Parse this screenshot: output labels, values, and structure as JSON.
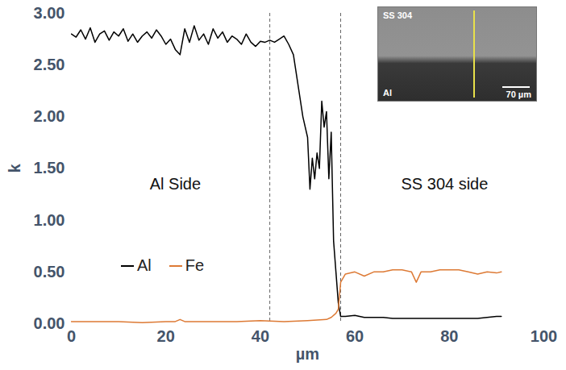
{
  "chart_data": {
    "type": "line",
    "x_label": "µm",
    "y_label": "k",
    "xlim": [
      0,
      100
    ],
    "xticks": [
      0,
      20,
      40,
      60,
      80,
      100
    ],
    "ylim": [
      0,
      3
    ],
    "yticks": [
      {
        "value": 0,
        "label": "0.00"
      },
      {
        "value": 0.5,
        "label": "0.50"
      },
      {
        "value": 1,
        "label": "1.00"
      },
      {
        "value": 1.5,
        "label": "1.50"
      },
      {
        "value": 2,
        "label": "2.00"
      },
      {
        "value": 2.5,
        "label": "2.50"
      },
      {
        "value": 3,
        "label": "3.00"
      }
    ],
    "grid": false,
    "legend": "left",
    "series": [
      {
        "name": "Al",
        "color": "#000000",
        "x": [
          0,
          1,
          2,
          3,
          4,
          5,
          6,
          7,
          8,
          9,
          10,
          11,
          12,
          13,
          14,
          15,
          16,
          17,
          18,
          19,
          20,
          21,
          22,
          23,
          24,
          25,
          26,
          27,
          28,
          29,
          30,
          31,
          32,
          33,
          34,
          35,
          36,
          37,
          38,
          39,
          40,
          41,
          42,
          43,
          44,
          45,
          46,
          47,
          48,
          49,
          50,
          50.5,
          51,
          51.5,
          52,
          52.5,
          53,
          53.5,
          54,
          54.5,
          55,
          55.5,
          56,
          56.5,
          57,
          58,
          60,
          62,
          64,
          66,
          68,
          70,
          72,
          74,
          76,
          78,
          80,
          82,
          84,
          86,
          88,
          90,
          91
        ],
        "values": [
          2.8,
          2.77,
          2.84,
          2.75,
          2.86,
          2.72,
          2.8,
          2.83,
          2.74,
          2.82,
          2.78,
          2.85,
          2.73,
          2.8,
          2.72,
          2.78,
          2.82,
          2.76,
          2.84,
          2.78,
          2.7,
          2.75,
          2.65,
          2.6,
          2.85,
          2.72,
          2.88,
          2.74,
          2.8,
          2.7,
          2.85,
          2.76,
          2.82,
          2.72,
          2.78,
          2.75,
          2.7,
          2.8,
          2.72,
          2.68,
          2.73,
          2.72,
          2.74,
          2.72,
          2.75,
          2.78,
          2.7,
          2.6,
          2.3,
          2.0,
          1.8,
          1.3,
          1.6,
          1.4,
          1.65,
          1.5,
          2.15,
          1.9,
          2.05,
          1.4,
          1.85,
          0.8,
          0.5,
          0.2,
          0.07,
          0.07,
          0.08,
          0.06,
          0.06,
          0.06,
          0.05,
          0.05,
          0.05,
          0.05,
          0.05,
          0.05,
          0.05,
          0.05,
          0.05,
          0.05,
          0.06,
          0.07,
          0.07
        ]
      },
      {
        "name": "Fe",
        "color": "#dd7a35",
        "x": [
          0,
          5,
          10,
          15,
          20,
          22,
          23,
          24,
          30,
          35,
          40,
          45,
          50,
          54,
          55,
          56,
          56.5,
          57,
          58,
          60,
          62,
          64,
          66,
          68,
          70,
          72,
          73,
          74,
          76,
          78,
          80,
          82,
          84,
          86,
          88,
          90,
          91
        ],
        "values": [
          0.02,
          0.02,
          0.02,
          0.01,
          0.02,
          0.02,
          0.04,
          0.02,
          0.02,
          0.02,
          0.03,
          0.02,
          0.03,
          0.04,
          0.06,
          0.1,
          0.14,
          0.4,
          0.48,
          0.5,
          0.46,
          0.5,
          0.5,
          0.52,
          0.52,
          0.5,
          0.4,
          0.5,
          0.5,
          0.52,
          0.52,
          0.52,
          0.5,
          0.48,
          0.5,
          0.49,
          0.5
        ]
      }
    ],
    "vlines": {
      "values": [
        42,
        57
      ],
      "line_style": "dashed"
    },
    "annotations": [
      {
        "text": "Al Side",
        "x": 22,
        "y": 1.35
      },
      {
        "text": "SS 304 side",
        "x": 79,
        "y": 1.35
      }
    ],
    "inset": {
      "texts": [
        "SS 304",
        "Al",
        "70 µm"
      ]
    }
  }
}
